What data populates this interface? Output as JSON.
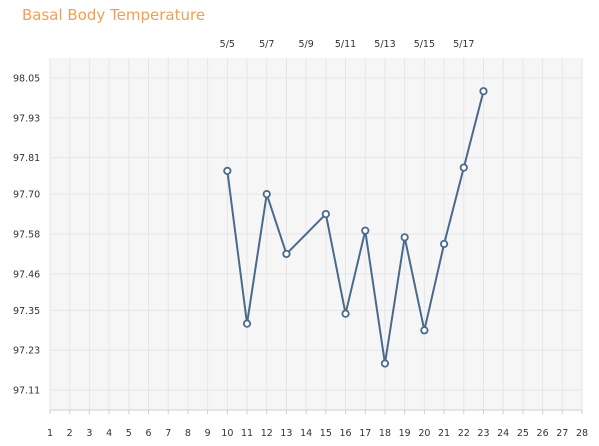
{
  "title": "Basal Body Temperature",
  "colors": {
    "title": "#f0a050",
    "line": "#4a6a8c",
    "plot_background": "#f6f6f6",
    "grid": "#e6e6e6"
  },
  "chart_data": {
    "type": "line",
    "title": "Basal Body Temperature",
    "xlabel": "",
    "ylabel": "",
    "x_ticks": [
      1,
      2,
      3,
      4,
      5,
      6,
      7,
      8,
      9,
      10,
      11,
      12,
      13,
      14,
      15,
      16,
      17,
      18,
      19,
      20,
      21,
      22,
      23,
      24,
      25,
      26,
      27,
      28
    ],
    "y_ticks": [
      "97.11",
      "97.23",
      "97.35",
      "97.46",
      "97.58",
      "97.70",
      "97.81",
      "97.93",
      "98.05"
    ],
    "top_date_labels": [
      {
        "x": 10,
        "label": "5/5"
      },
      {
        "x": 12,
        "label": "5/7"
      },
      {
        "x": 14,
        "label": "5/9"
      },
      {
        "x": 16,
        "label": "5/11"
      },
      {
        "x": 18,
        "label": "5/13"
      },
      {
        "x": 20,
        "label": "5/15"
      },
      {
        "x": 22,
        "label": "5/17"
      }
    ],
    "xlim": [
      1,
      28
    ],
    "ylim": [
      97.05,
      98.11
    ],
    "grid": true,
    "series": [
      {
        "x": [
          10,
          11,
          12,
          13,
          15,
          16,
          17,
          18,
          19,
          20,
          21,
          22,
          23
        ],
        "y": [
          97.77,
          97.31,
          97.7,
          97.52,
          97.64,
          97.34,
          97.59,
          97.19,
          97.57,
          97.29,
          97.55,
          97.78,
          98.01
        ]
      }
    ]
  }
}
